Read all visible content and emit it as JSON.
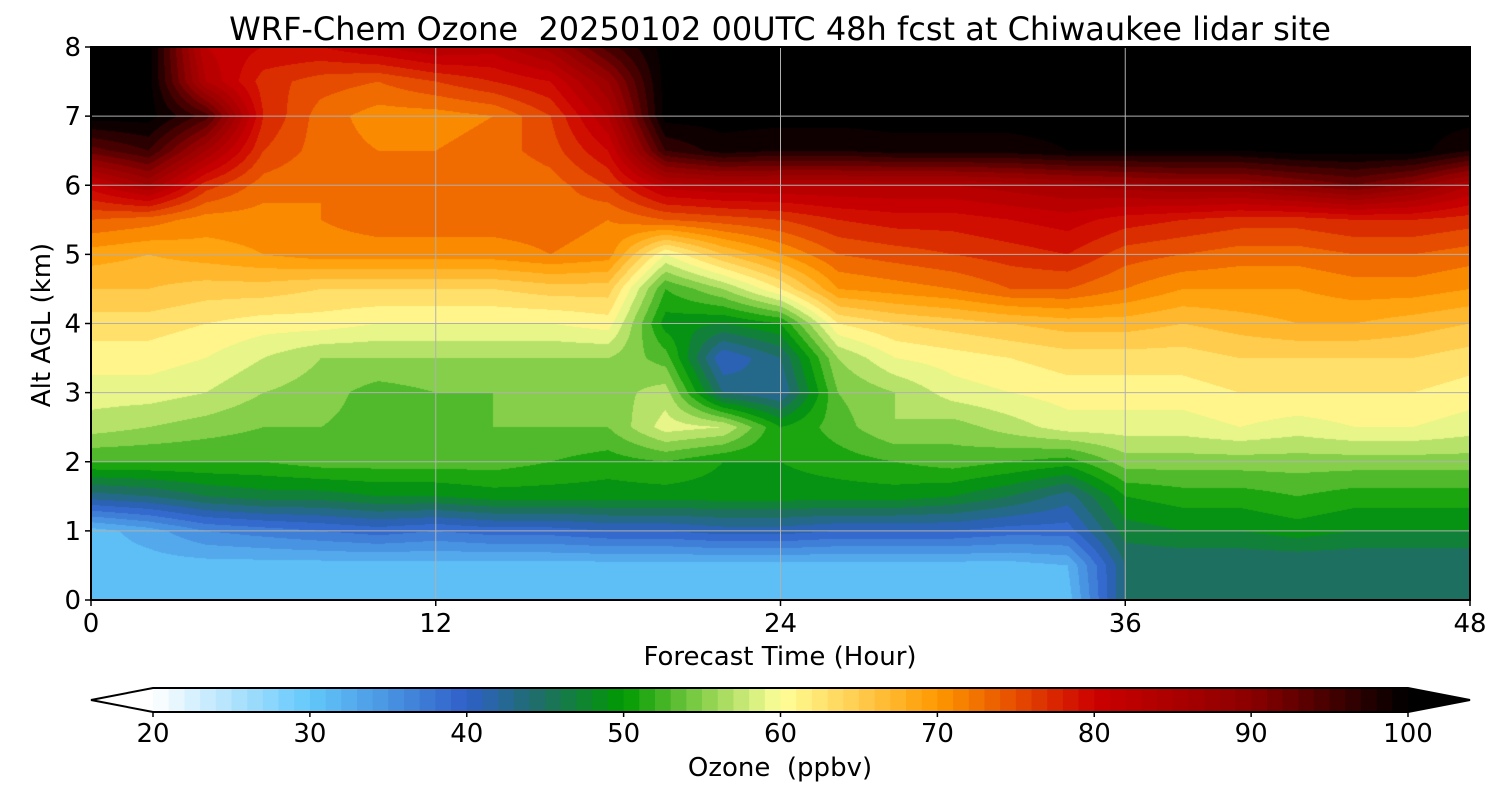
{
  "chart_data": {
    "type": "heatmap",
    "subtype": "filled-contour time-height cross section",
    "title": "WRF-Chem Ozone  20250102 00UTC 48h fcst at Chiwaukee lidar site",
    "xlabel": "Forecast Time (Hour)",
    "ylabel": "Alt AGL (km)",
    "xlim": [
      0,
      48
    ],
    "ylim": [
      0,
      8
    ],
    "xticks": [
      "0",
      "12",
      "24",
      "36",
      "48"
    ],
    "yticks": [
      "0",
      "1",
      "2",
      "3",
      "4",
      "5",
      "6",
      "7",
      "8"
    ],
    "grid": true,
    "colorbar": {
      "label": "Ozone  (ppbv)",
      "orientation": "horizontal",
      "extend": "both",
      "min": 20,
      "max": 100,
      "ticks": [
        "20",
        "30",
        "40",
        "50",
        "60",
        "70",
        "80",
        "90",
        "100"
      ],
      "color_stops": [
        {
          "value": 20,
          "color": "#ffffff"
        },
        {
          "value": 30,
          "color": "#63c8fb"
        },
        {
          "value": 40,
          "color": "#2f5fc8"
        },
        {
          "value": 45,
          "color": "#1d7060"
        },
        {
          "value": 50,
          "color": "#009a00"
        },
        {
          "value": 55,
          "color": "#86cf4a"
        },
        {
          "value": 60,
          "color": "#ffff99"
        },
        {
          "value": 70,
          "color": "#ff9900"
        },
        {
          "value": 80,
          "color": "#cc0000"
        },
        {
          "value": 90,
          "color": "#8b0000"
        },
        {
          "value": 100,
          "color": "#000000"
        }
      ],
      "under_color": "#ffffff",
      "over_color": "#000000"
    },
    "hours": [
      0,
      2,
      4,
      6,
      8,
      10,
      12,
      14,
      16,
      18,
      20,
      22,
      24,
      26,
      28,
      30,
      32,
      34,
      36,
      38,
      40,
      42,
      44,
      46,
      48
    ],
    "altitudes_km": [
      0,
      0.5,
      1,
      1.5,
      2,
      2.5,
      3,
      3.5,
      4,
      4.5,
      5,
      5.5,
      6,
      6.5,
      7,
      7.5,
      8
    ],
    "ozone_ppbv": [
      [
        31,
        31,
        31,
        31,
        31,
        31,
        31,
        31,
        31,
        31,
        31,
        31,
        31,
        31,
        31,
        31,
        31,
        31,
        44,
        44,
        44,
        44,
        44,
        44,
        44
      ],
      [
        31,
        31,
        31,
        31,
        31,
        31,
        31,
        31,
        31,
        31,
        31,
        31,
        31,
        31,
        31,
        31,
        31,
        32,
        44,
        44,
        44,
        44,
        44,
        44,
        44
      ],
      [
        31,
        33,
        36,
        37,
        38,
        39,
        38,
        39,
        39,
        40,
        40,
        41,
        41,
        40,
        40,
        40,
        39,
        39,
        47,
        48,
        48,
        49,
        48,
        48,
        48
      ],
      [
        43,
        44,
        46,
        47,
        47,
        48,
        48,
        49,
        49,
        49,
        49,
        49,
        49,
        49,
        49,
        48,
        46,
        43,
        50,
        51,
        51,
        52,
        51,
        51,
        51
      ],
      [
        52,
        52,
        52,
        52,
        53,
        53,
        53,
        53,
        52,
        51,
        52,
        50,
        50,
        51,
        52,
        53,
        52,
        51,
        55,
        55,
        55,
        55,
        55,
        55,
        55
      ],
      [
        57,
        56,
        55,
        54,
        54,
        53,
        53,
        54,
        54,
        54,
        59,
        58,
        50,
        53,
        56,
        55,
        57,
        59,
        59,
        59,
        60,
        59,
        60,
        60,
        59
      ],
      [
        59,
        59,
        58,
        56,
        55,
        53,
        54,
        54,
        55,
        55,
        57,
        44,
        42,
        54,
        56,
        59,
        60,
        61,
        61,
        61,
        62,
        62,
        62,
        62,
        61
      ],
      [
        61,
        61,
        60,
        58,
        56,
        56,
        56,
        56,
        56,
        56,
        53,
        40,
        44,
        56,
        60,
        61,
        62,
        63,
        63,
        63,
        64,
        64,
        64,
        64,
        63
      ],
      [
        63,
        63,
        62,
        61,
        61,
        60,
        60,
        60,
        60,
        61,
        49,
        48,
        50,
        62,
        64,
        65,
        66,
        67,
        67,
        66,
        67,
        68,
        68,
        67,
        66
      ],
      [
        66,
        66,
        65,
        65,
        64,
        64,
        64,
        64,
        65,
        65,
        52,
        56,
        62,
        70,
        71,
        72,
        74,
        74,
        72,
        70,
        70,
        70,
        71,
        71,
        70
      ],
      [
        69,
        68,
        69,
        70,
        71,
        71,
        71,
        71,
        72,
        71,
        60,
        66,
        70,
        74,
        75,
        76,
        77,
        78,
        75,
        74,
        73,
        73,
        74,
        74,
        73
      ],
      [
        74,
        73,
        71,
        71,
        72,
        73,
        73,
        73,
        73,
        72,
        74,
        75,
        76,
        78,
        79,
        79,
        80,
        81,
        79,
        78,
        77,
        77,
        78,
        78,
        77
      ],
      [
        81,
        86,
        77,
        73,
        72,
        72,
        72,
        72,
        73,
        76,
        83,
        84,
        84,
        84,
        84,
        84,
        85,
        86,
        87,
        88,
        88,
        90,
        92,
        89,
        84
      ],
      [
        93,
        96,
        86,
        76,
        73,
        72,
        72,
        73,
        75,
        80,
        96,
        99,
        98,
        98,
        99,
        99,
        99,
        100,
        100,
        100,
        100,
        101,
        101,
        101,
        98
      ],
      [
        101,
        101,
        95,
        78,
        73,
        71,
        71,
        72,
        76,
        84,
        101,
        101,
        101,
        101,
        101,
        101,
        101,
        101,
        101,
        101,
        101,
        101,
        101,
        101,
        101
      ],
      [
        101,
        101,
        84,
        77,
        75,
        74,
        76,
        78,
        80,
        88,
        101,
        101,
        101,
        101,
        101,
        101,
        101,
        101,
        101,
        101,
        101,
        101,
        101,
        101,
        101
      ],
      [
        101,
        101,
        82,
        80,
        80,
        82,
        84,
        83,
        87,
        95,
        101,
        101,
        101,
        101,
        101,
        101,
        101,
        101,
        101,
        101,
        101,
        101,
        101,
        101,
        101
      ]
    ]
  }
}
